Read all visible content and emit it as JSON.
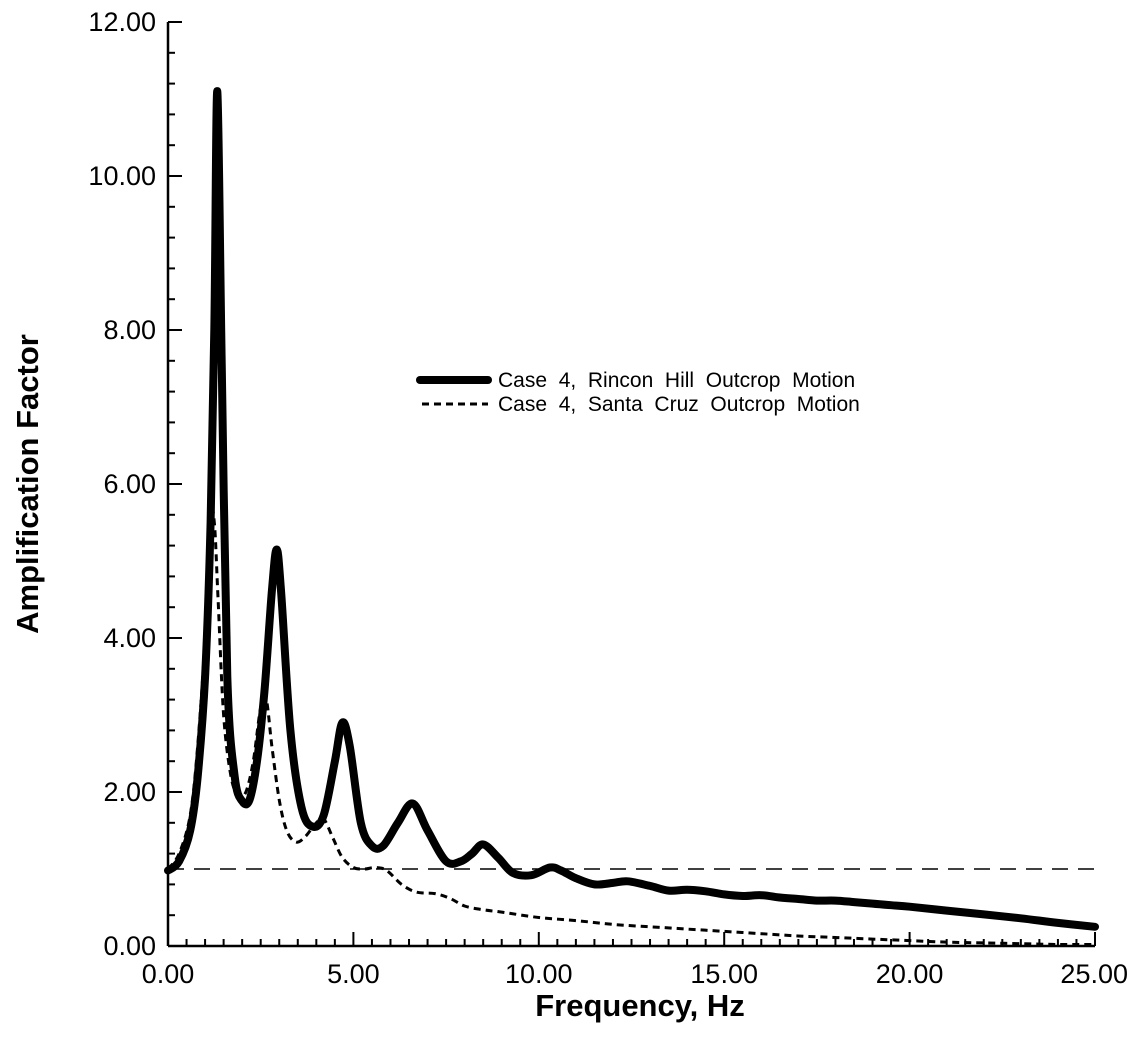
{
  "chart_data": {
    "type": "line",
    "xlabel": "Frequency,  Hz",
    "ylabel": "Amplification  Factor",
    "xlim": [
      0,
      25
    ],
    "ylim": [
      0,
      12
    ],
    "x_ticks": [
      0,
      5,
      10,
      15,
      20,
      25
    ],
    "x_tick_labels": [
      "0.00",
      "5.00",
      "10.00",
      "15.00",
      "20.00",
      "25.00"
    ],
    "y_ticks": [
      0,
      2,
      4,
      6,
      8,
      10,
      12
    ],
    "y_tick_labels": [
      "0.00",
      "2.00",
      "4.00",
      "6.00",
      "8.00",
      "10.00",
      "12.00"
    ],
    "grid": false,
    "legend_position": "center-right",
    "reference_line": {
      "y": 1.0,
      "style": "dashed"
    },
    "series": [
      {
        "name": "Case  4,  Rincon  Hill  Outcrop  Motion",
        "style": "solid-thick",
        "color": "#000000",
        "points": [
          [
            0.0,
            0.98
          ],
          [
            0.3,
            1.1
          ],
          [
            0.6,
            1.5
          ],
          [
            0.8,
            2.2
          ],
          [
            1.0,
            3.5
          ],
          [
            1.15,
            5.5
          ],
          [
            1.25,
            8.0
          ],
          [
            1.33,
            11.1
          ],
          [
            1.45,
            7.5
          ],
          [
            1.6,
            3.5
          ],
          [
            1.8,
            2.2
          ],
          [
            2.0,
            1.88
          ],
          [
            2.2,
            1.9
          ],
          [
            2.4,
            2.4
          ],
          [
            2.6,
            3.3
          ],
          [
            2.8,
            4.6
          ],
          [
            2.93,
            5.15
          ],
          [
            3.05,
            4.6
          ],
          [
            3.3,
            2.8
          ],
          [
            3.6,
            1.8
          ],
          [
            3.9,
            1.55
          ],
          [
            4.2,
            1.7
          ],
          [
            4.5,
            2.4
          ],
          [
            4.7,
            2.9
          ],
          [
            4.9,
            2.6
          ],
          [
            5.2,
            1.6
          ],
          [
            5.5,
            1.3
          ],
          [
            5.8,
            1.3
          ],
          [
            6.2,
            1.6
          ],
          [
            6.6,
            1.85
          ],
          [
            7.0,
            1.5
          ],
          [
            7.5,
            1.1
          ],
          [
            7.9,
            1.1
          ],
          [
            8.2,
            1.2
          ],
          [
            8.5,
            1.32
          ],
          [
            8.9,
            1.15
          ],
          [
            9.3,
            0.95
          ],
          [
            9.8,
            0.92
          ],
          [
            10.3,
            1.02
          ],
          [
            10.6,
            0.98
          ],
          [
            11.0,
            0.88
          ],
          [
            11.5,
            0.8
          ],
          [
            12.0,
            0.82
          ],
          [
            12.4,
            0.84
          ],
          [
            13.0,
            0.78
          ],
          [
            13.5,
            0.72
          ],
          [
            14.0,
            0.73
          ],
          [
            14.5,
            0.71
          ],
          [
            15.0,
            0.67
          ],
          [
            15.5,
            0.65
          ],
          [
            16.0,
            0.66
          ],
          [
            16.5,
            0.63
          ],
          [
            17.0,
            0.61
          ],
          [
            17.5,
            0.59
          ],
          [
            18.0,
            0.59
          ],
          [
            18.5,
            0.57
          ],
          [
            19.0,
            0.55
          ],
          [
            19.5,
            0.53
          ],
          [
            20.0,
            0.51
          ],
          [
            21.0,
            0.46
          ],
          [
            22.0,
            0.41
          ],
          [
            23.0,
            0.36
          ],
          [
            24.0,
            0.3
          ],
          [
            25.0,
            0.25
          ]
        ]
      },
      {
        "name": "Case  4,  Santa  Cruz  Outcrop  Motion",
        "style": "dashed-thin",
        "color": "#000000",
        "points": [
          [
            0.0,
            1.0
          ],
          [
            0.3,
            1.2
          ],
          [
            0.6,
            1.7
          ],
          [
            0.8,
            2.6
          ],
          [
            1.0,
            4.0
          ],
          [
            1.13,
            5.6
          ],
          [
            1.25,
            5.5
          ],
          [
            1.35,
            4.5
          ],
          [
            1.5,
            3.0
          ],
          [
            1.7,
            2.2
          ],
          [
            1.9,
            1.95
          ],
          [
            2.1,
            2.0
          ],
          [
            2.3,
            2.4
          ],
          [
            2.5,
            3.1
          ],
          [
            2.65,
            3.2
          ],
          [
            2.8,
            2.6
          ],
          [
            3.0,
            1.9
          ],
          [
            3.2,
            1.5
          ],
          [
            3.45,
            1.35
          ],
          [
            3.7,
            1.42
          ],
          [
            4.0,
            1.6
          ],
          [
            4.2,
            1.65
          ],
          [
            4.45,
            1.4
          ],
          [
            4.7,
            1.15
          ],
          [
            5.0,
            1.02
          ],
          [
            5.3,
            1.0
          ],
          [
            5.6,
            1.02
          ],
          [
            5.9,
            0.98
          ],
          [
            6.3,
            0.8
          ],
          [
            6.7,
            0.7
          ],
          [
            7.2,
            0.68
          ],
          [
            7.6,
            0.62
          ],
          [
            8.0,
            0.52
          ],
          [
            8.5,
            0.47
          ],
          [
            9.0,
            0.44
          ],
          [
            10.0,
            0.37
          ],
          [
            11.0,
            0.33
          ],
          [
            12.0,
            0.28
          ],
          [
            13.0,
            0.25
          ],
          [
            14.0,
            0.22
          ],
          [
            15.0,
            0.19
          ],
          [
            16.0,
            0.16
          ],
          [
            17.0,
            0.13
          ],
          [
            18.0,
            0.11
          ],
          [
            19.0,
            0.09
          ],
          [
            20.0,
            0.07
          ],
          [
            21.0,
            0.05
          ],
          [
            22.0,
            0.04
          ],
          [
            23.0,
            0.03
          ],
          [
            24.0,
            0.02
          ],
          [
            25.0,
            0.02
          ]
        ]
      }
    ]
  }
}
